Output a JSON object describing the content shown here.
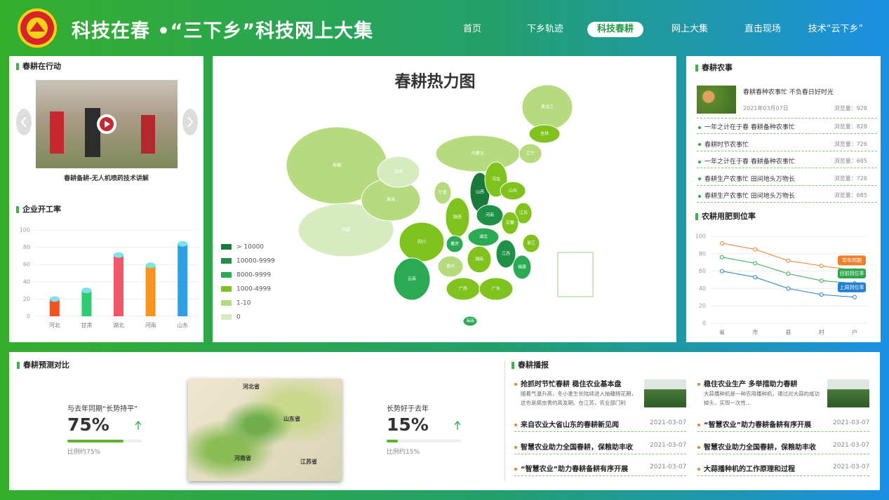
{
  "header": {
    "title": "科技在春 •“三下乡”科技网上大集",
    "nav": [
      "首页",
      "下乡轨迹",
      "科技春耕",
      "网上大集",
      "直击现场",
      "技术“云下乡”"
    ],
    "active_nav": 2
  },
  "action": {
    "title": "春耕在行动",
    "video_caption": "春耕备耕-无人机喷药技术讲解"
  },
  "heatmap": {
    "title": "春耕热力图",
    "legend": [
      {
        "label": "> 10000",
        "color": "#1a7a3a"
      },
      {
        "label": "10000-9999",
        "color": "#1e9147"
      },
      {
        "label": "8000-9999",
        "color": "#2aaa52"
      },
      {
        "label": "1000-4999",
        "color": "#7fc31c"
      },
      {
        "label": "1-10",
        "color": "#b5db7e"
      },
      {
        "label": "0",
        "color": "#d6ebbf"
      }
    ],
    "provinces": [
      {
        "name": "新疆",
        "color": "#b5db7e"
      },
      {
        "name": "西藏",
        "color": "#d6ebbf"
      },
      {
        "name": "青海",
        "color": "#b5db7e"
      },
      {
        "name": "甘肃",
        "color": "#d6ebbf"
      },
      {
        "name": "内蒙古",
        "color": "#b5db7e"
      },
      {
        "name": "黑龙江",
        "color": "#b5db7e"
      },
      {
        "name": "吉林",
        "color": "#7fc31c"
      },
      {
        "name": "辽宁",
        "color": "#b5db7e"
      },
      {
        "name": "宁夏",
        "color": "#b5db7e"
      },
      {
        "name": "四川",
        "color": "#7fc31c"
      },
      {
        "name": "陕西",
        "color": "#7fc31c"
      },
      {
        "name": "山西",
        "color": "#1a7a3a"
      },
      {
        "name": "河北",
        "color": "#7fc31c"
      },
      {
        "name": "山东",
        "color": "#7fc31c"
      },
      {
        "name": "河南",
        "color": "#1e9147"
      },
      {
        "name": "江苏",
        "color": "#7fc31c"
      },
      {
        "name": "安徽",
        "color": "#7fc31c"
      },
      {
        "name": "湖北",
        "color": "#2aaa52"
      },
      {
        "name": "重庆",
        "color": "#2aaa52"
      },
      {
        "name": "浙江",
        "color": "#7fc31c"
      },
      {
        "name": "湖南",
        "color": "#7fc31c"
      },
      {
        "name": "江西",
        "color": "#1e9147"
      },
      {
        "name": "贵州",
        "color": "#b5db7e"
      },
      {
        "name": "福建",
        "color": "#2aaa52"
      },
      {
        "name": "云南",
        "color": "#2aaa52"
      },
      {
        "name": "广西",
        "color": "#7fc31c"
      },
      {
        "name": "广东",
        "color": "#7fc31c"
      },
      {
        "name": "海南",
        "color": "#2aaa52"
      }
    ]
  },
  "chart_data": [
    {
      "type": "bar",
      "title": "企业开工率",
      "categories": [
        "河北",
        "甘肃",
        "湖北",
        "河南",
        "山东"
      ],
      "values": [
        20,
        30,
        71,
        59,
        84
      ],
      "colors": [
        "#f4511e",
        "#2ecc71",
        "#f25767",
        "#f7941d",
        "#2e9fe6"
      ],
      "ylim": [
        0,
        100
      ],
      "yticks": [
        0,
        20,
        40,
        60,
        80,
        100
      ],
      "grid": true
    },
    {
      "type": "line",
      "title": "农耕用肥到位率",
      "categories": [
        "省",
        "市",
        "县",
        "村",
        "户"
      ],
      "series": [
        {
          "name": "常年同期",
          "color": "#f07f2c",
          "values": [
            92,
            85,
            72,
            66,
            61
          ]
        },
        {
          "name": "目前到位率",
          "color": "#2aa84a",
          "values": [
            76,
            69,
            57,
            49,
            46
          ]
        },
        {
          "name": "上周到位率",
          "color": "#1f7fd0",
          "values": [
            60,
            53,
            40,
            33,
            30
          ]
        }
      ],
      "ylim": [
        0,
        100
      ],
      "yticks": [
        0,
        20,
        40,
        60,
        80,
        100
      ],
      "grid": true
    }
  ],
  "farm_news": {
    "title": "春耕农事",
    "featured": {
      "title": "春耕春种农事忙 不负春日好时光",
      "date": "2021年03月07日",
      "views": "浏览量：928"
    },
    "items": [
      {
        "title": "一年之计在于春 春耕备种农事忙",
        "views": "浏览量：828"
      },
      {
        "title": "春耕时节农事忙",
        "views": "浏览量：726"
      },
      {
        "title": "一年之计在于春 春耕备种农事忙",
        "views": "浏览量：685"
      },
      {
        "title": "春耕生产农事忙 田间地头万物长",
        "views": "浏览量：726"
      },
      {
        "title": "春耕生产农事忙 田间地头万物长",
        "views": "浏览量：685"
      }
    ]
  },
  "forecast": {
    "title": "春耕预测对比",
    "items": [
      {
        "label": "与去年同期“长势持平”",
        "value": 75,
        "value_label": "75%",
        "note": "比例约75%"
      },
      {
        "label": "长势好于去年",
        "value": 15,
        "value_label": "15%",
        "note": "比例约15%"
      }
    ],
    "map_labels": [
      "河北省",
      "山东省",
      "河南省",
      "江苏省"
    ]
  },
  "broadcast": {
    "title": "春耕播报",
    "columns": [
      {
        "featured": {
          "title": "抢抓时节忙春耕 稳住农业基本盘",
          "summary": "随着气温升高，冬小麦生长陆续进入抽穗扬花期，这也是病虫害的高发期。在江苏，农业部门利"
        },
        "items": [
          {
            "title": "来自农业大省山东的春耕新见闻",
            "date": "2021-03-07"
          },
          {
            "title": "智慧农业助力全国春耕，保粮助丰收",
            "date": "2021-03-07"
          },
          {
            "title": "“智慧农业”助力春耕备耕有序开展",
            "date": "2021-03-07"
          }
        ]
      },
      {
        "featured": {
          "title": "稳住农业生产 多举措助力春耕",
          "summary": "大蒜播种机是一种农用播种机，通过对大蒜的成功掉头，实现一次性..."
        },
        "items": [
          {
            "title": "“智慧农业”助力春耕备耕有序开展",
            "date": "2021-03-07"
          },
          {
            "title": "智慧农业助力全国春耕，保粮助丰收",
            "date": "2021-03-07"
          },
          {
            "title": "大蒜播种机的工作原理和过程",
            "date": "2021-03-07"
          }
        ]
      }
    ]
  }
}
